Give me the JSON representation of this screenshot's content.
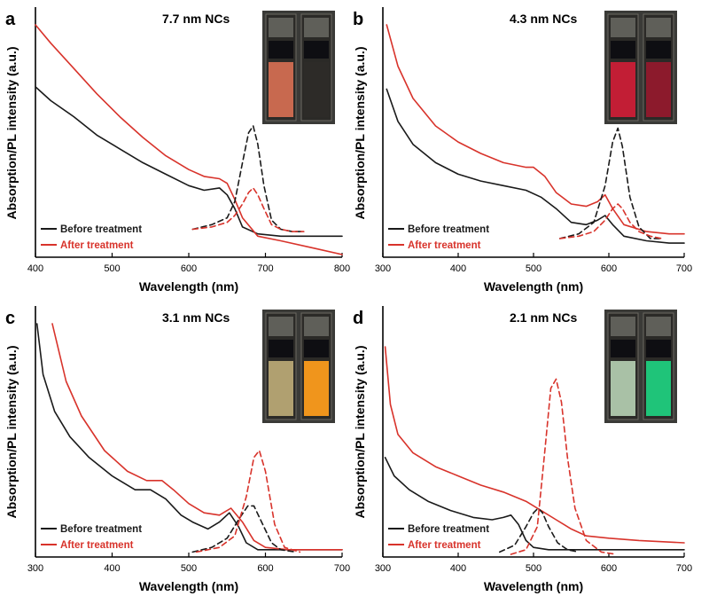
{
  "figure": {
    "ylabel": "Absorption/PL intensity (a.u.)",
    "colors": {
      "before": "#1a1a1a",
      "after": "#d8332b"
    }
  },
  "chart_data": [
    {
      "type": "line",
      "letter": "a",
      "title": "7.7 nm NCs",
      "xlabel": "Wavelength (nm)",
      "xlim": [
        400,
        800
      ],
      "xticks": [
        400,
        500,
        600,
        700,
        800
      ],
      "ylim": [
        0,
        1
      ],
      "vial_colors": [
        "#c8694f",
        "#2d2b28"
      ],
      "legend": [
        "Before treatment",
        "After treatment"
      ],
      "series": [
        {
          "name": "Before treatment",
          "kind": "absorption",
          "style": "solid",
          "color": "#1a1a1a",
          "x": [
            400,
            420,
            450,
            480,
            510,
            540,
            570,
            600,
            620,
            640,
            650,
            660,
            670,
            690,
            720,
            760,
            800
          ],
          "y": [
            0.73,
            0.67,
            0.6,
            0.52,
            0.46,
            0.4,
            0.35,
            0.3,
            0.28,
            0.29,
            0.26,
            0.2,
            0.12,
            0.09,
            0.08,
            0.08,
            0.08
          ]
        },
        {
          "name": "After treatment",
          "kind": "absorption",
          "style": "solid",
          "color": "#d8332b",
          "x": [
            400,
            420,
            450,
            480,
            510,
            540,
            570,
            600,
            620,
            640,
            650,
            660,
            670,
            690,
            720,
            760,
            800
          ],
          "y": [
            1.0,
            0.92,
            0.81,
            0.7,
            0.6,
            0.51,
            0.43,
            0.37,
            0.34,
            0.33,
            0.31,
            0.24,
            0.16,
            0.08,
            0.06,
            0.03,
            0.0
          ]
        },
        {
          "name": "",
          "kind": "PL",
          "style": "dashed",
          "color": "#1a1a1a",
          "x": [
            605,
            630,
            650,
            660,
            670,
            678,
            684,
            690,
            698,
            708,
            720,
            735,
            750
          ],
          "y": [
            0.11,
            0.13,
            0.16,
            0.23,
            0.4,
            0.53,
            0.56,
            0.48,
            0.3,
            0.15,
            0.11,
            0.1,
            0.1
          ]
        },
        {
          "name": "",
          "kind": "PL",
          "style": "dashed",
          "color": "#d8332b",
          "x": [
            605,
            630,
            650,
            660,
            670,
            678,
            684,
            690,
            698,
            708,
            720,
            735,
            750
          ],
          "y": [
            0.11,
            0.12,
            0.14,
            0.17,
            0.22,
            0.27,
            0.29,
            0.26,
            0.2,
            0.13,
            0.11,
            0.1,
            0.1
          ]
        }
      ]
    },
    {
      "type": "line",
      "letter": "b",
      "title": "4.3 nm NCs",
      "xlabel": "Wavelength (nm)",
      "xlim": [
        300,
        700
      ],
      "xticks": [
        300,
        400,
        500,
        600,
        700
      ],
      "ylim": [
        0,
        1
      ],
      "vial_colors": [
        "#c21e35",
        "#8c1a2c"
      ],
      "legend": [
        "Before treatment",
        "After treatment"
      ],
      "series": [
        {
          "name": "Before treatment",
          "kind": "absorption",
          "style": "solid",
          "color": "#1a1a1a",
          "x": [
            305,
            320,
            340,
            370,
            400,
            430,
            460,
            490,
            510,
            530,
            550,
            570,
            585,
            595,
            605,
            620,
            650,
            680,
            700
          ],
          "y": [
            0.72,
            0.58,
            0.48,
            0.4,
            0.35,
            0.32,
            0.3,
            0.28,
            0.25,
            0.2,
            0.14,
            0.13,
            0.15,
            0.17,
            0.13,
            0.08,
            0.06,
            0.05,
            0.05
          ]
        },
        {
          "name": "After treatment",
          "kind": "absorption",
          "style": "solid",
          "color": "#d8332b",
          "x": [
            305,
            320,
            340,
            370,
            400,
            430,
            460,
            490,
            500,
            515,
            530,
            550,
            570,
            585,
            595,
            605,
            620,
            650,
            680,
            700
          ],
          "y": [
            1.0,
            0.82,
            0.68,
            0.56,
            0.49,
            0.44,
            0.4,
            0.38,
            0.38,
            0.34,
            0.27,
            0.22,
            0.21,
            0.23,
            0.26,
            0.2,
            0.13,
            0.1,
            0.09,
            0.09
          ]
        },
        {
          "name": "",
          "kind": "PL",
          "style": "dashed",
          "color": "#1a1a1a",
          "x": [
            535,
            560,
            580,
            595,
            605,
            612,
            618,
            628,
            640,
            655,
            670
          ],
          "y": [
            0.07,
            0.09,
            0.14,
            0.3,
            0.49,
            0.55,
            0.47,
            0.25,
            0.12,
            0.07,
            0.07
          ]
        },
        {
          "name": "",
          "kind": "PL",
          "style": "dashed",
          "color": "#d8332b",
          "x": [
            535,
            560,
            580,
            595,
            605,
            612,
            618,
            628,
            640,
            655,
            670
          ],
          "y": [
            0.07,
            0.08,
            0.1,
            0.15,
            0.2,
            0.22,
            0.2,
            0.14,
            0.1,
            0.08,
            0.07
          ]
        }
      ]
    },
    {
      "type": "line",
      "letter": "c",
      "title": "3.1 nm NCs",
      "xlabel": "Wavelength (nm)",
      "xlim": [
        300,
        700
      ],
      "xticks": [
        300,
        400,
        500,
        600,
        700
      ],
      "ylim": [
        0,
        1
      ],
      "vial_colors": [
        "#b0a070",
        "#f0951c"
      ],
      "legend": [
        "Before treatment",
        "After treatment"
      ],
      "series": [
        {
          "name": "Before treatment",
          "kind": "absorption",
          "style": "solid",
          "color": "#1a1a1a",
          "x": [
            302,
            310,
            325,
            345,
            370,
            400,
            430,
            450,
            470,
            490,
            505,
            525,
            540,
            553,
            565,
            575,
            590,
            620,
            660,
            700
          ],
          "y": [
            1.0,
            0.78,
            0.62,
            0.51,
            0.42,
            0.34,
            0.28,
            0.28,
            0.24,
            0.17,
            0.14,
            0.11,
            0.14,
            0.18,
            0.12,
            0.05,
            0.02,
            0.02,
            0.02,
            0.02
          ]
        },
        {
          "name": "After treatment",
          "kind": "absorption",
          "style": "solid",
          "color": "#d8332b",
          "x": [
            322,
            340,
            360,
            390,
            420,
            445,
            465,
            480,
            500,
            520,
            540,
            555,
            570,
            585,
            600,
            630,
            670,
            700
          ],
          "y": [
            1.0,
            0.75,
            0.6,
            0.45,
            0.36,
            0.32,
            0.32,
            0.28,
            0.22,
            0.18,
            0.17,
            0.2,
            0.14,
            0.06,
            0.03,
            0.02,
            0.02,
            0.02
          ]
        },
        {
          "name": "",
          "kind": "PL",
          "style": "dashed",
          "color": "#1a1a1a",
          "x": [
            505,
            530,
            550,
            565,
            577,
            585,
            595,
            608,
            620,
            640
          ],
          "y": [
            0.01,
            0.03,
            0.07,
            0.15,
            0.21,
            0.21,
            0.14,
            0.05,
            0.02,
            0.01
          ]
        },
        {
          "name": "",
          "kind": "PL",
          "style": "dashed",
          "color": "#d8332b",
          "x": [
            510,
            540,
            560,
            575,
            585,
            592,
            600,
            612,
            625,
            645
          ],
          "y": [
            0.01,
            0.03,
            0.08,
            0.25,
            0.42,
            0.45,
            0.36,
            0.13,
            0.03,
            0.01
          ]
        }
      ]
    },
    {
      "type": "line",
      "letter": "d",
      "title": "2.1 nm NCs",
      "xlabel": "Wavelength (nm)",
      "xlim": [
        300,
        700
      ],
      "xticks": [
        300,
        400,
        500,
        600,
        700
      ],
      "ylim": [
        0,
        1
      ],
      "vial_colors": [
        "#a9c1a6",
        "#1fc479"
      ],
      "legend": [
        "Before treatment",
        "After treatment"
      ],
      "series": [
        {
          "name": "Before treatment",
          "kind": "absorption",
          "style": "solid",
          "color": "#1a1a1a",
          "x": [
            303,
            315,
            335,
            360,
            390,
            420,
            445,
            460,
            470,
            480,
            490,
            500,
            520,
            560,
            620,
            700
          ],
          "y": [
            0.42,
            0.34,
            0.28,
            0.23,
            0.19,
            0.16,
            0.15,
            0.16,
            0.17,
            0.13,
            0.06,
            0.03,
            0.02,
            0.02,
            0.02,
            0.02
          ]
        },
        {
          "name": "After treatment",
          "kind": "absorption",
          "style": "solid",
          "color": "#d8332b",
          "x": [
            303,
            310,
            320,
            340,
            370,
            400,
            430,
            460,
            490,
            510,
            530,
            550,
            570,
            600,
            640,
            700
          ],
          "y": [
            0.9,
            0.65,
            0.52,
            0.44,
            0.38,
            0.34,
            0.3,
            0.27,
            0.23,
            0.19,
            0.15,
            0.11,
            0.08,
            0.07,
            0.06,
            0.05
          ]
        },
        {
          "name": "",
          "kind": "PL",
          "style": "dashed",
          "color": "#1a1a1a",
          "x": [
            455,
            475,
            490,
            500,
            506,
            512,
            520,
            532,
            545,
            560
          ],
          "y": [
            0.01,
            0.04,
            0.12,
            0.18,
            0.2,
            0.18,
            0.12,
            0.05,
            0.02,
            0.01
          ]
        },
        {
          "name": "",
          "kind": "PL",
          "style": "dashed",
          "color": "#d8332b",
          "x": [
            470,
            490,
            505,
            515,
            523,
            530,
            537,
            545,
            555,
            570,
            590,
            610
          ],
          "y": [
            0.0,
            0.02,
            0.12,
            0.45,
            0.72,
            0.76,
            0.66,
            0.42,
            0.2,
            0.06,
            0.01,
            0.0
          ]
        }
      ]
    }
  ]
}
